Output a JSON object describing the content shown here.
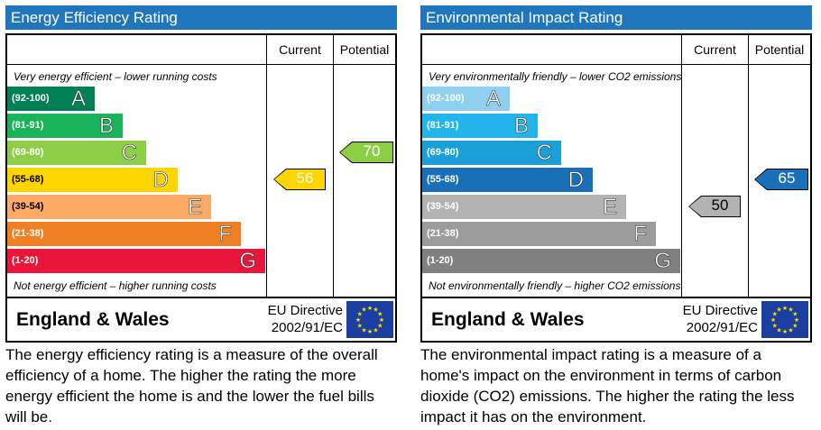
{
  "energy_efficiency": {
    "title": "Energy Efficiency Rating",
    "col_current": "Current",
    "col_potential": "Potential",
    "top_caption": "Very energy efficient – lower running costs",
    "bottom_caption": "Not energy efficient – higher running costs",
    "bands": [
      {
        "range": "(92-100)",
        "letter": "A",
        "color": "#008054"
      },
      {
        "range": "(81-91)",
        "letter": "B",
        "color": "#19b459"
      },
      {
        "range": "(69-80)",
        "letter": "C",
        "color": "#8dce46"
      },
      {
        "range": "(55-68)",
        "letter": "D",
        "color": "#ffd500"
      },
      {
        "range": "(39-54)",
        "letter": "E",
        "color": "#fcaa65"
      },
      {
        "range": "(21-38)",
        "letter": "F",
        "color": "#ef8023"
      },
      {
        "range": "(1-20)",
        "letter": "G",
        "color": "#e9153b"
      }
    ],
    "current": {
      "value": "56",
      "band_index": 3,
      "color": "#ffd500"
    },
    "potential": {
      "value": "70",
      "band_index": 2,
      "color": "#8dce46"
    },
    "region": "England & Wales",
    "directive_line1": "EU Directive",
    "directive_line2": "2002/91/EC",
    "description": "The energy efficiency rating is a measure of the overall efficiency of a home.  The higher the rating the more energy efficient the home is and the lower the fuel bills will be."
  },
  "environmental_impact": {
    "title": "Environmental Impact Rating",
    "col_current": "Current",
    "col_potential": "Potential",
    "top_caption": "Very environmentally friendly – lower CO2 emissions",
    "bottom_caption": "Not environmentally friendly – higher CO2 emissions",
    "bands": [
      {
        "range": "(92-100)",
        "letter": "A",
        "color": "#8fd0f0"
      },
      {
        "range": "(81-91)",
        "letter": "B",
        "color": "#22b5eb"
      },
      {
        "range": "(69-80)",
        "letter": "C",
        "color": "#1a9fd8"
      },
      {
        "range": "(55-68)",
        "letter": "D",
        "color": "#1a70b8"
      },
      {
        "range": "(39-54)",
        "letter": "E",
        "color": "#b3b3b3"
      },
      {
        "range": "(21-38)",
        "letter": "F",
        "color": "#9c9c9c"
      },
      {
        "range": "(1-20)",
        "letter": "G",
        "color": "#808080"
      }
    ],
    "current": {
      "value": "50",
      "band_index": 4,
      "color": "#b3b3b3"
    },
    "potential": {
      "value": "65",
      "band_index": 3,
      "color": "#1a70b8"
    },
    "region": "England & Wales",
    "directive_line1": "EU Directive",
    "directive_line2": "2002/91/EC",
    "description": "The environmental impact rating is a measure of a home's impact on the environment in terms of carbon dioxide (CO2) emissions.  The higher the rating the less impact it has on the environment."
  }
}
